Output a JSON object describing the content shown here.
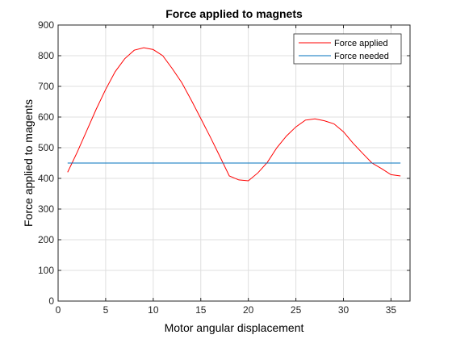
{
  "chart_data": {
    "type": "line",
    "title": "Force applied to magnets",
    "xlabel": "Motor angular displacement",
    "ylabel": "Force applied to magents",
    "xlim": [
      0,
      37
    ],
    "ylim": [
      0,
      900
    ],
    "xticks": [
      0,
      5,
      10,
      15,
      20,
      25,
      30,
      35
    ],
    "yticks": [
      0,
      100,
      200,
      300,
      400,
      500,
      600,
      700,
      800,
      900
    ],
    "grid": true,
    "legend_position": "top-right",
    "series": [
      {
        "name": "Force applied",
        "color": "#ff0000",
        "x": [
          1,
          2,
          3,
          4,
          5,
          6,
          7,
          8,
          9,
          10,
          11,
          12,
          13,
          14,
          15,
          16,
          17,
          18,
          19,
          20,
          21,
          22,
          23,
          24,
          25,
          26,
          27,
          28,
          29,
          30,
          31,
          32,
          33,
          34,
          35,
          36
        ],
        "y": [
          420,
          485,
          555,
          625,
          690,
          748,
          790,
          818,
          826,
          820,
          800,
          758,
          712,
          655,
          595,
          535,
          472,
          408,
          395,
          392,
          418,
          452,
          500,
          538,
          568,
          590,
          594,
          588,
          578,
          552,
          515,
          482,
          450,
          432,
          412,
          408
        ]
      },
      {
        "name": "Force needed",
        "color": "#0072bd",
        "x": [
          1,
          36
        ],
        "y": [
          450,
          450
        ]
      }
    ]
  }
}
